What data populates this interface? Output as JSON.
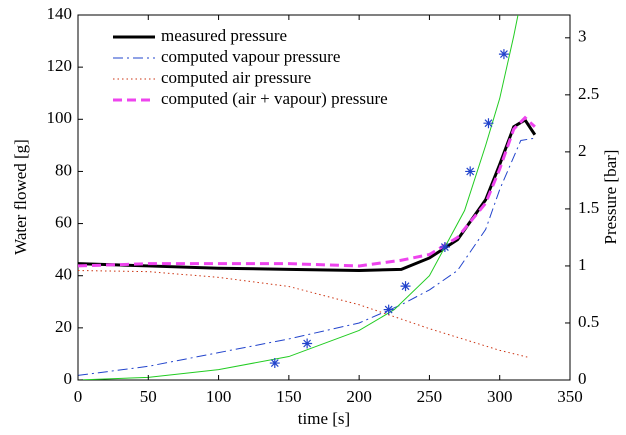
{
  "chart_data": {
    "type": "line",
    "xlabel": "time [s]",
    "ylabel": "Water flowed [g]",
    "y2label": "Pressure [bar]",
    "xlim": [
      0,
      350
    ],
    "xticks": [
      0,
      50,
      100,
      150,
      200,
      250,
      300,
      350
    ],
    "ylim": [
      0,
      140
    ],
    "yticks": [
      0,
      20,
      40,
      60,
      80,
      100,
      120,
      140
    ],
    "y2lim": [
      0,
      3.2
    ],
    "y2ticks": [
      0,
      0.5,
      1,
      1.5,
      2,
      2.5,
      3
    ],
    "legend": "upper left",
    "series": [
      {
        "name": "measured pressure",
        "axis": "y2",
        "color": "#000000",
        "style": "solid",
        "linewidth": 3,
        "x": [
          0,
          50,
          100,
          150,
          200,
          230,
          250,
          270,
          290,
          300,
          310,
          318,
          325
        ],
        "values": [
          1.02,
          1.0,
          0.98,
          0.97,
          0.96,
          0.97,
          1.07,
          1.23,
          1.58,
          1.89,
          2.22,
          2.28,
          2.15
        ]
      },
      {
        "name": "computed vapour pressure",
        "axis": "y2",
        "color": "#2244cc",
        "style": "dashdot",
        "linewidth": 1,
        "x": [
          0,
          50,
          100,
          150,
          200,
          230,
          250,
          270,
          290,
          300,
          315,
          325
        ],
        "values": [
          0.04,
          0.12,
          0.24,
          0.36,
          0.5,
          0.66,
          0.79,
          0.96,
          1.32,
          1.67,
          2.1,
          2.12
        ]
      },
      {
        "name": "computed air pressure",
        "axis": "y2",
        "color": "#cc3311",
        "style": "dotted",
        "linewidth": 1,
        "x": [
          0,
          50,
          100,
          150,
          200,
          250,
          300,
          320
        ],
        "values": [
          0.96,
          0.95,
          0.9,
          0.82,
          0.66,
          0.45,
          0.26,
          0.2
        ]
      },
      {
        "name": "computed (air + vapour) pressure",
        "axis": "y2",
        "color": "#ee44ee",
        "style": "dashed",
        "linewidth": 3,
        "x": [
          0,
          50,
          100,
          150,
          200,
          230,
          250,
          270,
          290,
          300,
          310,
          318,
          325
        ],
        "values": [
          1.0,
          1.02,
          1.02,
          1.02,
          1.0,
          1.05,
          1.1,
          1.25,
          1.55,
          1.85,
          2.2,
          2.3,
          2.22
        ]
      },
      {
        "axis": "y",
        "color": "#22cc22",
        "style": "solid",
        "linewidth": 1,
        "x": [
          0,
          50,
          100,
          150,
          200,
          225,
          250,
          275,
          290,
          300,
          310,
          313
        ],
        "values": [
          0,
          1,
          4,
          9,
          19,
          27,
          40,
          65,
          90,
          108,
          132,
          140
        ]
      },
      {
        "axis": "y",
        "color": "#2244cc",
        "style": "none",
        "marker": "star",
        "x": [
          140,
          163,
          221,
          233,
          261,
          279,
          292,
          303
        ],
        "values": [
          6.5,
          14,
          27,
          36,
          51,
          80,
          98.5,
          125
        ]
      }
    ]
  }
}
